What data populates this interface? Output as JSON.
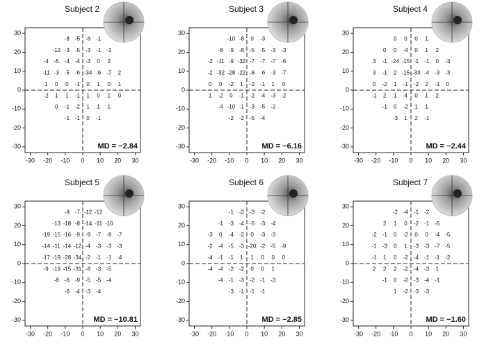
{
  "chart_data": [
    {
      "type": "text-grid",
      "title": "Subject 2",
      "annotation": "MD = −2.84",
      "x": [
        -21,
        -15,
        -9,
        -3,
        3,
        9,
        15,
        21
      ],
      "y": [
        27,
        21,
        15,
        9,
        3,
        -3,
        -9,
        -15
      ],
      "values": [
        [
          null,
          null,
          -8,
          -5,
          -6,
          -1,
          null,
          null
        ],
        [
          null,
          -12,
          -3,
          -5,
          -3,
          -1,
          -1,
          null
        ],
        [
          -4,
          -5,
          -4,
          -4,
          -3,
          0,
          2,
          null
        ],
        [
          -11,
          -3,
          -5,
          -6,
          -34,
          -6,
          -7,
          2
        ],
        [
          1,
          0,
          0,
          -1,
          0,
          1,
          0,
          1
        ],
        [
          -2,
          1,
          1,
          -1,
          1,
          0,
          1,
          0
        ],
        [
          null,
          0,
          -1,
          -2,
          1,
          1,
          1,
          null
        ],
        [
          null,
          null,
          -1,
          -1,
          0,
          -1,
          null,
          null
        ]
      ],
      "xlim": [
        -33,
        33
      ],
      "ylim": [
        -33,
        33
      ],
      "xticks": [
        -30,
        -20,
        -10,
        0,
        10,
        20,
        30
      ],
      "yticks": [
        -30,
        -20,
        -10,
        0,
        10,
        20,
        30
      ]
    },
    {
      "type": "text-grid",
      "title": "Subject 3",
      "annotation": "MD = −6.16",
      "x": [
        -21,
        -15,
        -9,
        -3,
        3,
        9,
        15,
        21
      ],
      "y": [
        27,
        21,
        15,
        9,
        3,
        -3,
        -9,
        -15
      ],
      "values": [
        [
          null,
          null,
          -10,
          -8,
          0,
          -3,
          null,
          null
        ],
        [
          null,
          -8,
          -9,
          -8,
          -5,
          -5,
          -3,
          -3
        ],
        [
          -2,
          -11,
          -9,
          -32,
          -7,
          -7,
          -7,
          -6
        ],
        [
          -2,
          -32,
          -28,
          -22,
          -8,
          -6,
          -3,
          -7
        ],
        [
          0,
          0,
          -2,
          1,
          -2,
          -1,
          1,
          0
        ],
        [
          1,
          -2,
          0,
          -1,
          -2,
          -4,
          -3,
          -2
        ],
        [
          null,
          -4,
          -10,
          -1,
          -3,
          -5,
          -2,
          null
        ],
        [
          null,
          null,
          -2,
          -2,
          -5,
          -4,
          null,
          null
        ]
      ],
      "xlim": [
        -33,
        33
      ],
      "ylim": [
        -33,
        33
      ],
      "xticks": [
        -30,
        -20,
        -10,
        0,
        10,
        20,
        30
      ],
      "yticks": [
        -30,
        -20,
        -10,
        0,
        10,
        20,
        30
      ]
    },
    {
      "type": "text-grid",
      "title": "Subject 4",
      "annotation": "MD = −2.44",
      "x": [
        -21,
        -15,
        -9,
        -3,
        3,
        9,
        15,
        21
      ],
      "y": [
        27,
        21,
        15,
        9,
        3,
        -3,
        -9,
        -15
      ],
      "values": [
        [
          null,
          null,
          0,
          0,
          0,
          1,
          null,
          null
        ],
        [
          null,
          0,
          0,
          -4,
          0,
          1,
          2,
          null
        ],
        [
          3,
          -1,
          -24,
          -15,
          -1,
          -1,
          0,
          -3
        ],
        [
          3,
          -1,
          2,
          -15,
          -33,
          -4,
          -3,
          -3
        ],
        [
          0,
          -2,
          1,
          -1,
          -2,
          2,
          -1,
          0
        ],
        [
          -1,
          2,
          1,
          4,
          0,
          1,
          2,
          null
        ],
        [
          null,
          -1,
          0,
          -2,
          1,
          1,
          null,
          null
        ],
        [
          null,
          null,
          -3,
          1,
          2,
          -1,
          null,
          null
        ]
      ],
      "xlim": [
        -33,
        33
      ],
      "ylim": [
        -33,
        33
      ],
      "xticks": [
        -30,
        -20,
        -10,
        0,
        10,
        20,
        30
      ],
      "yticks": [
        -30,
        -20,
        -10,
        0,
        10,
        20,
        30
      ]
    },
    {
      "type": "text-grid",
      "title": "Subject 5",
      "annotation": "MD = −10.81",
      "x": [
        -21,
        -15,
        -9,
        -3,
        3,
        9,
        15,
        21
      ],
      "y": [
        27,
        21,
        15,
        9,
        3,
        -3,
        -9,
        -15
      ],
      "values": [
        [
          null,
          null,
          -8,
          -7,
          -12,
          -12,
          null,
          null
        ],
        [
          null,
          -13,
          -18,
          -8,
          -14,
          -11,
          -10,
          null
        ],
        [
          -19,
          -15,
          -16,
          -9,
          -9,
          -7,
          -8,
          -7
        ],
        [
          -14,
          -11,
          -14,
          -12,
          -4,
          -3,
          -3,
          -3
        ],
        [
          -17,
          -19,
          -28,
          -34,
          -2,
          -1,
          -1,
          -4
        ],
        [
          -9,
          -19,
          -15,
          -31,
          -8,
          -3,
          -5,
          null
        ],
        [
          null,
          -8,
          -6,
          -9,
          -5,
          -5,
          -4,
          null
        ],
        [
          null,
          null,
          -6,
          -4,
          -3,
          -4,
          null,
          null
        ]
      ],
      "xlim": [
        -33,
        33
      ],
      "ylim": [
        -33,
        33
      ],
      "xticks": [
        -30,
        -20,
        -10,
        0,
        10,
        20,
        30
      ],
      "yticks": [
        -30,
        -20,
        -10,
        0,
        10,
        20,
        30
      ]
    },
    {
      "type": "text-grid",
      "title": "Subject 6",
      "annotation": "MD = −2.85",
      "x": [
        -21,
        -15,
        -9,
        -3,
        3,
        9,
        15,
        21
      ],
      "y": [
        27,
        21,
        15,
        9,
        3,
        -3,
        -9,
        -15
      ],
      "values": [
        [
          null,
          null,
          -1,
          -2,
          -3,
          -2,
          null,
          null
        ],
        [
          null,
          -1,
          -3,
          -4,
          -5,
          -3,
          -4,
          null
        ],
        [
          -3,
          0,
          -4,
          -2,
          0,
          -3,
          -3,
          null
        ],
        [
          -2,
          -4,
          -5,
          -3,
          -20,
          -2,
          -5,
          -9
        ],
        [
          -4,
          -1,
          -1,
          1,
          1,
          0,
          0,
          0
        ],
        [
          -4,
          -4,
          -2,
          -2,
          0,
          0,
          1,
          null
        ],
        [
          null,
          -4,
          -1,
          -3,
          -2,
          -1,
          -3,
          null
        ],
        [
          null,
          null,
          -3,
          -1,
          -1,
          -1,
          null,
          null
        ]
      ],
      "xlim": [
        -33,
        33
      ],
      "ylim": [
        -33,
        33
      ],
      "xticks": [
        -30,
        -20,
        -10,
        0,
        10,
        20,
        30
      ],
      "yticks": [
        -30,
        -20,
        -10,
        0,
        10,
        20,
        30
      ]
    },
    {
      "type": "text-grid",
      "title": "Subject 7",
      "annotation": "MD = −1.60",
      "x": [
        -21,
        -15,
        -9,
        -3,
        3,
        9,
        15,
        21
      ],
      "y": [
        27,
        21,
        15,
        9,
        3,
        -3,
        -9,
        -15
      ],
      "values": [
        [
          null,
          null,
          -2,
          -4,
          -1,
          -2,
          null,
          null
        ],
        [
          null,
          2,
          1,
          0,
          -2,
          -1,
          -5,
          null
        ],
        [
          -2,
          -1,
          0,
          -2,
          0,
          0,
          -4,
          -5
        ],
        [
          -1,
          -3,
          0,
          1,
          -3,
          -3,
          -7,
          -5
        ],
        [
          -1,
          1,
          0,
          -2,
          -4,
          -1,
          -1,
          -2
        ],
        [
          2,
          2,
          2,
          -2,
          -4,
          -3,
          1,
          null
        ],
        [
          null,
          -1,
          0,
          -2,
          -3,
          -4,
          -1,
          null
        ],
        [
          null,
          null,
          1,
          -2,
          -3,
          -3,
          null,
          null
        ]
      ],
      "xlim": [
        -33,
        33
      ],
      "ylim": [
        -33,
        33
      ],
      "xticks": [
        -30,
        -20,
        -10,
        0,
        10,
        20,
        30
      ],
      "yticks": [
        -30,
        -20,
        -10,
        0,
        10,
        20,
        30
      ]
    }
  ]
}
